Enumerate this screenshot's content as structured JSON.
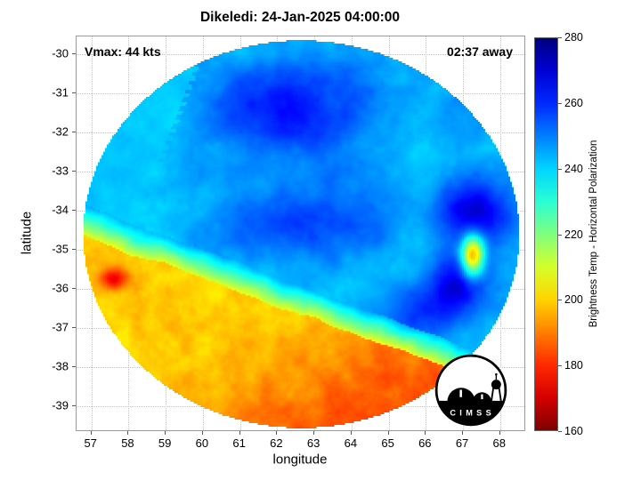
{
  "chart_data": {
    "type": "heatmap",
    "title": "Dikeledi: 24-Jan-2025 04:00:00",
    "xlabel": "longitude",
    "ylabel": "latitude",
    "xlim": [
      56.6,
      68.7
    ],
    "ylim": [
      -39.66,
      -29.55
    ],
    "x_ticks": [
      57,
      58,
      59,
      60,
      61,
      62,
      63,
      64,
      65,
      66,
      67,
      68
    ],
    "y_ticks": [
      -30,
      -31,
      -32,
      -33,
      -34,
      -35,
      -36,
      -37,
      -38,
      -39
    ],
    "grid": true,
    "annotations": {
      "vmax": "Vmax: 44 kts",
      "eta": "02:37 away"
    },
    "colorbar": {
      "label": "Brightness Temp - Horizontal Polarization",
      "ticks": [
        160,
        180,
        200,
        220,
        240,
        260,
        280
      ],
      "range": [
        160,
        280
      ],
      "colormap": "jet-reversed",
      "position": "right"
    },
    "swath": {
      "shape": "circular",
      "center_lon": 62.65,
      "center_lat": -34.6
    },
    "features": {
      "cold_canopy": {
        "area": "north and east of boundary",
        "base_K": 252,
        "range_K": [
          235,
          280
        ]
      },
      "warm_band": {
        "area": "southwest diagonal band",
        "base_K": 207,
        "range_K": [
          185,
          220
        ]
      },
      "boundary": {
        "lat_at_lon57": -34.2,
        "lat_at_lon66": -37.45
      },
      "seam": {
        "from": [
          59.9,
          -30.2
        ],
        "to": [
          57.2,
          -36.9
        ]
      },
      "warm_spot_west": {
        "lon": 57.6,
        "lat": -35.75,
        "min_K": 182
      },
      "warm_spot_east": {
        "lon": 67.25,
        "lat": -35.15,
        "min_K": 196
      },
      "cold_spots_east": [
        {
          "lon": 67.3,
          "lat": -34.0
        },
        {
          "lon": 66.8,
          "lat": -35.9
        }
      ],
      "cold_patches": [
        {
          "lon": 62.3,
          "lat": -31.5
        },
        {
          "lon": 62.5,
          "lat": -34.3
        },
        {
          "lon": 65.8,
          "lat": -36.7
        }
      ]
    }
  },
  "logo": {
    "text": "C I M S S"
  },
  "colors": {
    "background": "#ffffff",
    "grid": "#c3c3c3",
    "axis": "#9a9a9a",
    "text": "#000000",
    "colorbar_top": "#000080",
    "colorbar_bottom": "#800000"
  }
}
